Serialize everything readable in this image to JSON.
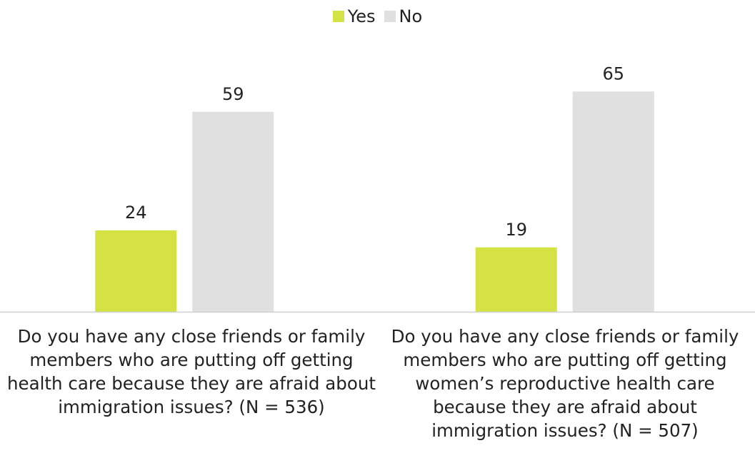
{
  "chart_data": {
    "type": "bar",
    "categories": [
      "Do you have any close friends or family members who are putting off getting health care because they are afraid about immigration issues? (N = 536)",
      "Do you have any close friends or family members who are putting off getting women’s reproductive health care because they are afraid about immigration issues? (N = 507)"
    ],
    "series": [
      {
        "name": "Yes",
        "values": [
          24,
          19
        ],
        "color": "#d4e343"
      },
      {
        "name": "No",
        "values": [
          59,
          65
        ],
        "color": "#e0e0e0"
      }
    ],
    "title": "",
    "xlabel": "",
    "ylabel": "",
    "ylim": [
      0,
      70
    ],
    "grid": false,
    "legend": "top-center",
    "data_labels": true,
    "axis_color": "#d0d0d0"
  }
}
